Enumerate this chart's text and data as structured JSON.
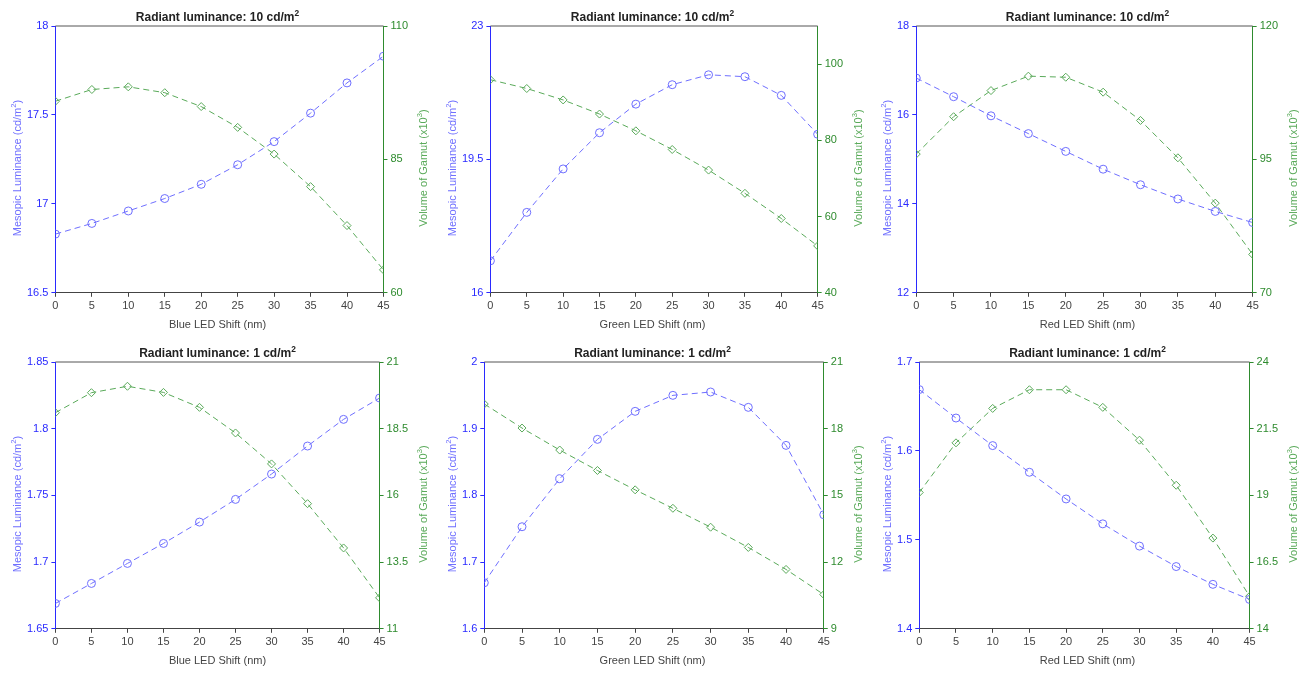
{
  "chart_data": [
    {
      "type": "line",
      "title": "Radiant luminance: 10 cd/m$^{2}$",
      "xlabel": "Blue LED Shift (nm)",
      "ylabel": "Mesopic Luminance (cd/m$^{2}$)",
      "y2label": "Volume of Gamut (x10$^{3}$)",
      "x": [
        0,
        5,
        10,
        15,
        20,
        25,
        30,
        35,
        40,
        45
      ],
      "xlim": [
        0,
        45
      ],
      "xticks": [
        0,
        5,
        10,
        15,
        20,
        25,
        30,
        35,
        40,
        45
      ],
      "ylim": [
        16.5,
        18
      ],
      "yticks": [
        16.5,
        17,
        17.5,
        18
      ],
      "y2lim": [
        60,
        110
      ],
      "y2ticks": [
        60,
        85,
        110
      ],
      "grid": false,
      "legend": false,
      "line_style": "dashed",
      "series": [
        {
          "color": "#6f6fff",
          "marker": "circle",
          "values": [
            16.83,
            16.89,
            16.96,
            17.03,
            17.11,
            17.22,
            17.35,
            17.51,
            17.68,
            17.83
          ]
        },
        {
          "color": "#5aaa5a",
          "marker": "diamond",
          "axis": "y2",
          "values": [
            95.9,
            98.1,
            98.6,
            97.5,
            94.9,
            91.0,
            86.0,
            79.9,
            72.6,
            64.3
          ]
        }
      ]
    },
    {
      "type": "line",
      "title": "Radiant luminance: 10 cd/m$^{2}$",
      "xlabel": "Green LED Shift (nm)",
      "ylabel": "Mesopic Luminance (cd/m$^{2}$)",
      "y2label": "Volume of Gamut (x10$^{3}$)",
      "x": [
        0,
        5,
        10,
        15,
        20,
        25,
        30,
        35,
        40,
        45
      ],
      "xlim": [
        0,
        45
      ],
      "xticks": [
        0,
        5,
        10,
        15,
        20,
        25,
        30,
        35,
        40,
        45
      ],
      "ylim": [
        16,
        23
      ],
      "yticks": [
        16,
        19.5,
        23
      ],
      "y2lim": [
        40,
        110
      ],
      "y2ticks": [
        40,
        60,
        80,
        100
      ],
      "grid": false,
      "legend": false,
      "line_style": "dashed",
      "series": [
        {
          "color": "#6f6fff",
          "marker": "circle",
          "values": [
            16.84,
            18.11,
            19.25,
            20.2,
            20.95,
            21.46,
            21.72,
            21.67,
            21.18,
            20.16
          ]
        },
        {
          "color": "#5aaa5a",
          "marker": "diamond",
          "axis": "y2",
          "values": [
            95.9,
            93.6,
            90.6,
            86.9,
            82.5,
            77.6,
            72.2,
            66.1,
            59.5,
            52.3
          ]
        }
      ]
    },
    {
      "type": "line",
      "title": "Radiant luminance: 10 cd/m$^{2}$",
      "xlabel": "Red LED Shift (nm)",
      "ylabel": "Mesopic Luminance (cd/m$^{2}$)",
      "y2label": "Volume of Gamut (x10$^{3}$)",
      "x": [
        0,
        5,
        10,
        15,
        20,
        25,
        30,
        35,
        40,
        45
      ],
      "xlim": [
        0,
        45
      ],
      "xticks": [
        0,
        5,
        10,
        15,
        20,
        25,
        30,
        35,
        40,
        45
      ],
      "ylim": [
        12,
        18
      ],
      "yticks": [
        12,
        14,
        16,
        18
      ],
      "y2lim": [
        70,
        120
      ],
      "y2ticks": [
        70,
        95,
        120
      ],
      "grid": false,
      "legend": false,
      "line_style": "dashed",
      "series": [
        {
          "color": "#6f6fff",
          "marker": "circle",
          "values": [
            16.83,
            16.41,
            15.98,
            15.58,
            15.18,
            14.78,
            14.43,
            14.11,
            13.83,
            13.58
          ]
        },
        {
          "color": "#5aaa5a",
          "marker": "diamond",
          "axis": "y2",
          "values": [
            96.0,
            103.0,
            107.9,
            110.6,
            110.4,
            107.6,
            102.3,
            95.3,
            86.8,
            77.2
          ]
        }
      ]
    },
    {
      "type": "line",
      "title": "Radiant luminance: 1 cd/m$^{2}$",
      "xlabel": "Blue LED Shift (nm)",
      "ylabel": "Mesopic Luminance (cd/m$^{2}$)",
      "y2label": "Volume of Gamut (x10$^{3}$)",
      "x": [
        0,
        5,
        10,
        15,
        20,
        25,
        30,
        35,
        40,
        45
      ],
      "xlim": [
        0,
        45
      ],
      "xticks": [
        0,
        5,
        10,
        15,
        20,
        25,
        30,
        35,
        40,
        45
      ],
      "ylim": [
        1.65,
        1.85
      ],
      "yticks": [
        1.65,
        1.7,
        1.75,
        1.8,
        1.85
      ],
      "y2lim": [
        11,
        21
      ],
      "y2ticks": [
        11,
        13.5,
        16,
        18.5,
        21
      ],
      "grid": false,
      "legend": false,
      "line_style": "dashed",
      "series": [
        {
          "color": "#6f6fff",
          "marker": "circle",
          "values": [
            1.669,
            1.684,
            1.699,
            1.714,
            1.73,
            1.747,
            1.766,
            1.787,
            1.807,
            1.823
          ]
        },
        {
          "color": "#5aaa5a",
          "marker": "diamond",
          "axis": "y2",
          "values": [
            19.1,
            19.85,
            20.09,
            19.86,
            19.3,
            18.34,
            17.18,
            15.69,
            14.03,
            12.16
          ]
        }
      ]
    },
    {
      "type": "line",
      "title": "Radiant luminance: 1 cd/m$^{2}$",
      "xlabel": "Green LED Shift (nm)",
      "ylabel": "Mesopic Luminance (cd/m$^{2}$)",
      "y2label": "Volume of Gamut (x10$^{3}$)",
      "x": [
        0,
        5,
        10,
        15,
        20,
        25,
        30,
        35,
        40,
        45
      ],
      "xlim": [
        0,
        45
      ],
      "xticks": [
        0,
        5,
        10,
        15,
        20,
        25,
        30,
        35,
        40,
        45
      ],
      "ylim": [
        1.6,
        2
      ],
      "yticks": [
        1.6,
        1.7,
        1.8,
        1.9,
        2
      ],
      "y2lim": [
        9,
        21
      ],
      "y2ticks": [
        9,
        12,
        15,
        18,
        21
      ],
      "grid": false,
      "legend": false,
      "line_style": "dashed",
      "series": [
        {
          "color": "#6f6fff",
          "marker": "circle",
          "values": [
            1.669,
            1.753,
            1.825,
            1.884,
            1.926,
            1.95,
            1.955,
            1.932,
            1.875,
            1.771
          ]
        },
        {
          "color": "#5aaa5a",
          "marker": "diamond",
          "axis": "y2",
          "values": [
            19.11,
            18.03,
            17.04,
            16.12,
            15.25,
            14.42,
            13.57,
            12.66,
            11.67,
            10.54
          ]
        }
      ]
    },
    {
      "type": "line",
      "title": "Radiant luminance: 1 cd/m$^{2}$",
      "xlabel": "Red LED Shift (nm)",
      "ylabel": "Mesopic Luminance (cd/m$^{2}$)",
      "y2label": "Volume of Gamut (x10$^{3}$)",
      "x": [
        0,
        5,
        10,
        15,
        20,
        25,
        30,
        35,
        40,
        45
      ],
      "xlim": [
        0,
        45
      ],
      "xticks": [
        0,
        5,
        10,
        15,
        20,
        25,
        30,
        35,
        40,
        45
      ],
      "ylim": [
        1.4,
        1.7
      ],
      "yticks": [
        1.4,
        1.5,
        1.6,
        1.7
      ],
      "y2lim": [
        14,
        24
      ],
      "y2ticks": [
        14,
        16.5,
        19,
        21.5,
        24
      ],
      "grid": false,
      "legend": false,
      "line_style": "dashed",
      "series": [
        {
          "color": "#6f6fff",
          "marker": "circle",
          "values": [
            1.669,
            1.637,
            1.606,
            1.576,
            1.546,
            1.518,
            1.493,
            1.47,
            1.45,
            1.433
          ]
        },
        {
          "color": "#5aaa5a",
          "marker": "diamond",
          "axis": "y2",
          "values": [
            19.11,
            20.97,
            22.26,
            22.96,
            22.96,
            22.3,
            21.07,
            19.38,
            17.4,
            15.22
          ]
        }
      ]
    }
  ]
}
